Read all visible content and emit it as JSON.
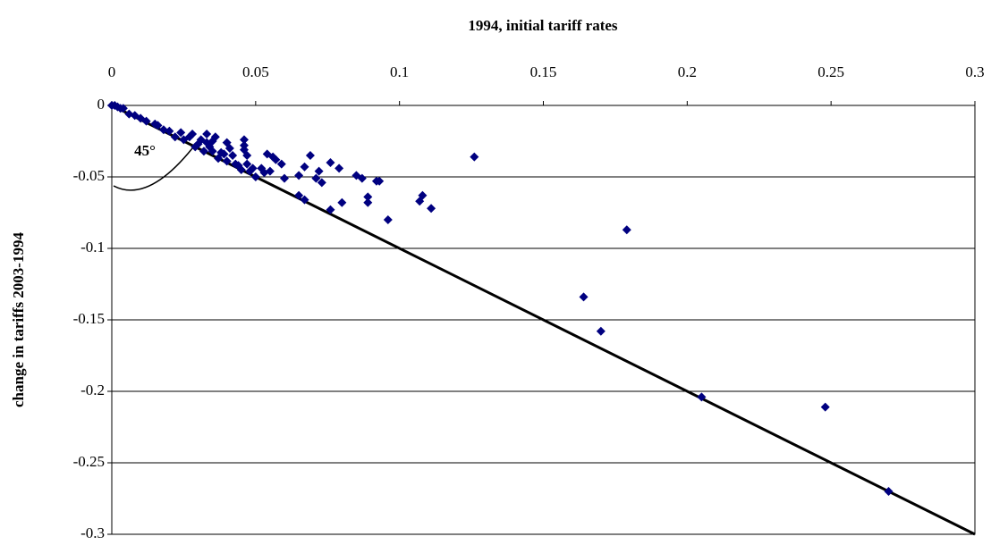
{
  "chart_data": {
    "type": "scatter",
    "title": "1994, initial tariff rates",
    "y_label": "change in tariffs 2003-1994",
    "annotation": "45°",
    "color": "#000080",
    "identity_line": true,
    "grid": true,
    "xlim": [
      0,
      0.3
    ],
    "xticks": [
      0,
      0.05,
      0.1,
      0.15,
      0.2,
      0.25,
      0.3
    ],
    "ylim": [
      -0.3,
      0
    ],
    "yticks": [
      0,
      -0.05,
      -0.1,
      -0.15,
      -0.2,
      -0.25,
      -0.3
    ],
    "x": [
      0.126,
      0.179,
      0.164,
      0.17,
      0.205,
      0.248,
      0.27,
      0.096,
      0.111,
      0.108,
      0.107,
      0.093,
      0.092,
      0.089,
      0.089,
      0.087,
      0.085,
      0.08,
      0.079,
      0.076,
      0.076,
      0.073,
      0.072,
      0.071,
      0.069,
      0.067,
      0.067,
      0.065,
      0.065,
      0.06,
      0.059,
      0.057,
      0.056,
      0.055,
      0.054,
      0.052,
      0.05,
      0.049,
      0.047,
      0.047,
      0.046,
      0.046,
      0.046,
      0.045,
      0.044,
      0.042,
      0.041,
      0.04,
      0.04,
      0.038,
      0.036,
      0.035,
      0.034,
      0.033,
      0.032,
      0.031,
      0.03,
      0.028,
      0.027,
      0.025,
      0.024,
      0.022,
      0.02,
      0.018,
      0.016,
      0.015,
      0.012,
      0.01,
      0.008,
      0.006,
      0.004,
      0.003,
      0.002,
      0.001,
      0.0,
      0.037,
      0.039,
      0.043,
      0.048,
      0.053,
      0.029,
      0.033,
      0.035
    ],
    "values": [
      -0.036,
      -0.087,
      -0.134,
      -0.158,
      -0.204,
      -0.211,
      -0.27,
      -0.08,
      -0.072,
      -0.063,
      -0.067,
      -0.053,
      -0.053,
      -0.064,
      -0.068,
      -0.051,
      -0.049,
      -0.068,
      -0.044,
      -0.04,
      -0.073,
      -0.054,
      -0.046,
      -0.051,
      -0.035,
      -0.066,
      -0.043,
      -0.049,
      -0.063,
      -0.051,
      -0.041,
      -0.038,
      -0.036,
      -0.046,
      -0.034,
      -0.044,
      -0.05,
      -0.044,
      -0.041,
      -0.035,
      -0.028,
      -0.024,
      -0.031,
      -0.045,
      -0.042,
      -0.035,
      -0.03,
      -0.026,
      -0.039,
      -0.033,
      -0.022,
      -0.025,
      -0.029,
      -0.02,
      -0.032,
      -0.024,
      -0.027,
      -0.02,
      -0.022,
      -0.024,
      -0.019,
      -0.022,
      -0.018,
      -0.017,
      -0.014,
      -0.013,
      -0.011,
      -0.009,
      -0.007,
      -0.006,
      -0.002,
      -0.002,
      -0.001,
      0.0,
      0.0,
      -0.037,
      -0.034,
      -0.041,
      -0.046,
      -0.047,
      -0.029,
      -0.026,
      -0.032
    ]
  }
}
